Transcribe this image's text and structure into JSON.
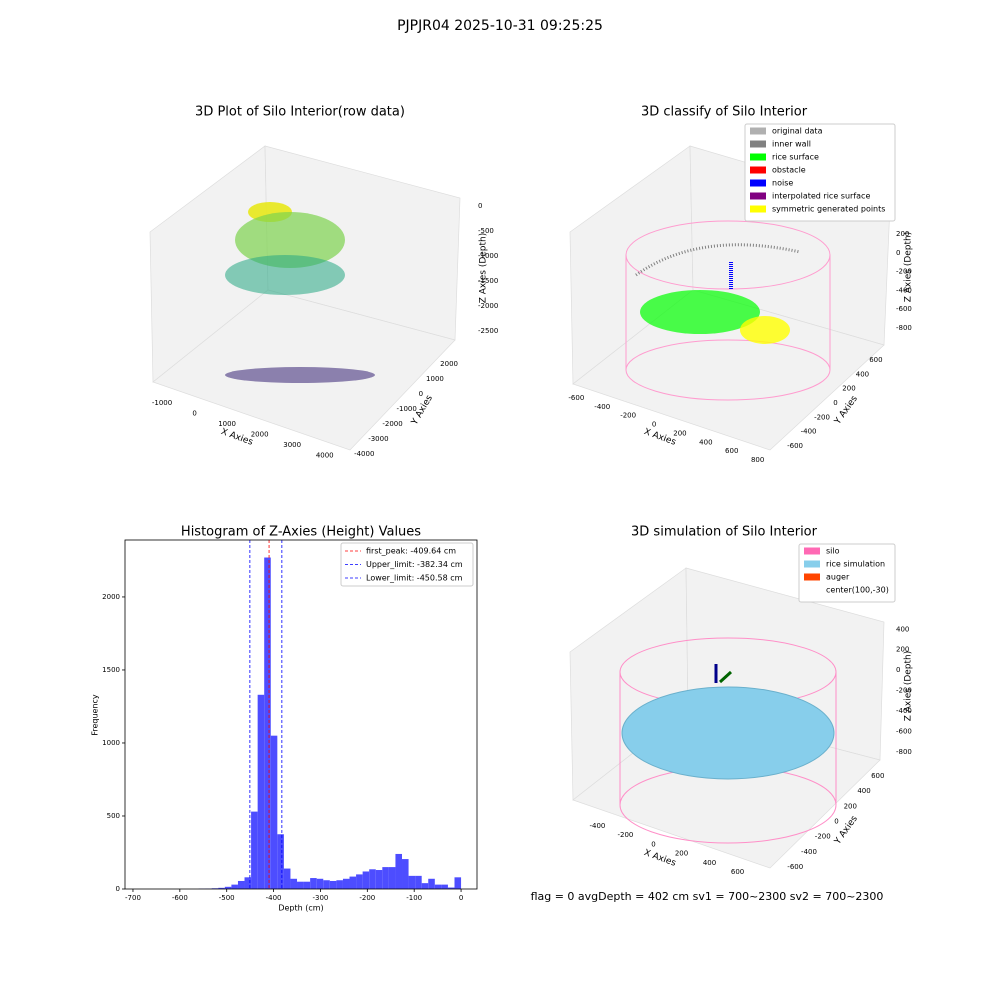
{
  "title": "PJPJR04 2025-10-31 09:25:25",
  "chart_data": [
    {
      "type": "scatter3d",
      "title": "3D Plot of Silo Interior(row data)",
      "xlabel": "X Axies",
      "ylabel": "Y Axies",
      "zlabel": "Z Axies (Depth)",
      "xlim": [
        -1400,
        4500
      ],
      "ylim": [
        -4300,
        2700
      ],
      "zlim": [
        -2800,
        300
      ],
      "xticks": [
        -1000,
        0,
        1000,
        2000,
        3000,
        4000
      ],
      "yticks": [
        -4000,
        -3000,
        -2000,
        -1000,
        0,
        1000,
        2000
      ],
      "zticks": [
        -2500,
        -2000,
        -1500,
        -1000,
        -500,
        0
      ]
    },
    {
      "type": "scatter3d",
      "title": "3D classify of Silo Interior",
      "xlabel": "X Axies",
      "ylabel": "Y Axies",
      "zlabel": "Z Axies (Depth)",
      "xlim": [
        -680,
        880
      ],
      "ylim": [
        -720,
        720
      ],
      "zlim": [
        -900,
        360
      ],
      "xticks": [
        -600,
        -400,
        -200,
        0,
        200,
        400,
        600,
        800
      ],
      "yticks": [
        -600,
        -400,
        -200,
        0,
        200,
        400,
        600
      ],
      "zticks": [
        -800,
        -600,
        -400,
        -200,
        0,
        200
      ],
      "series": [
        {
          "name": "original data",
          "color": "#b0b0b0"
        },
        {
          "name": "inner wall",
          "color": "#808080"
        },
        {
          "name": "rice surface",
          "color": "#00ff00"
        },
        {
          "name": "obstacle",
          "color": "#ff0000"
        },
        {
          "name": "noise",
          "color": "#0000ff"
        },
        {
          "name": "interpolated rice surface",
          "color": "#800080"
        },
        {
          "name": "symmetric generated points",
          "color": "#ffff00"
        }
      ]
    },
    {
      "type": "histogram",
      "title": "Histogram of Z-Axies (Height) Values",
      "xlabel": "Depth (cm)",
      "ylabel": "Frequency",
      "color": "#4d4dff",
      "xlim": [
        -717,
        34
      ],
      "ylim": [
        0,
        2390
      ],
      "xticks": [
        -700,
        -600,
        -500,
        -400,
        -300,
        -200,
        -100,
        0
      ],
      "yticks": [
        0,
        500,
        1000,
        1500,
        2000
      ],
      "bins": [
        -700,
        -686,
        -672,
        -658,
        -644,
        -630,
        -616,
        -602,
        -588,
        -574,
        -560,
        -546,
        -532,
        -518,
        -504,
        -490,
        -476,
        -462,
        -448,
        -434,
        -420,
        -406,
        -392,
        -378,
        -364,
        -350,
        -336,
        -322,
        -308,
        -294,
        -280,
        -266,
        -252,
        -238,
        -224,
        -210,
        -196,
        -182,
        -168,
        -154,
        -140,
        -126,
        -112,
        -98,
        -84,
        -70,
        -56,
        -42,
        -28,
        -14,
        0
      ],
      "values": [
        0,
        0,
        0,
        0,
        0,
        0,
        0,
        0,
        0,
        0,
        2,
        3,
        5,
        8,
        15,
        30,
        55,
        80,
        530,
        1330,
        2270,
        1050,
        375,
        140,
        70,
        50,
        50,
        75,
        70,
        60,
        55,
        60,
        70,
        85,
        100,
        120,
        135,
        130,
        150,
        150,
        240,
        205,
        90,
        90,
        40,
        70,
        30,
        30,
        10,
        80
      ],
      "lines": [
        {
          "label": "first_peak: -409.64 cm",
          "value": -409.64,
          "color": "#ff0000",
          "style": "dashed"
        },
        {
          "label": "Upper_limit: -382.34 cm",
          "value": -382.34,
          "color": "#0000ff",
          "style": "dashed"
        },
        {
          "label": "Lower_limit: -450.58 cm",
          "value": -450.58,
          "color": "#0000ff",
          "style": "dashed"
        }
      ],
      "legend": "upper right"
    },
    {
      "type": "surface3d",
      "title": "3D simulation of Silo Interior",
      "xlabel": "X Axies",
      "ylabel": "Y Axies",
      "zlabel": "Z Axies (Depth)",
      "xlim": [
        -560,
        760
      ],
      "ylim": [
        -720,
        720
      ],
      "zlim": [
        -900,
        520
      ],
      "xticks": [
        -400,
        -200,
        0,
        200,
        400,
        600
      ],
      "yticks": [
        -600,
        -400,
        -200,
        0,
        200,
        400,
        600
      ],
      "zticks": [
        -800,
        -600,
        -400,
        -200,
        0,
        200,
        400
      ],
      "series": [
        {
          "name": "silo",
          "color": "#ff69b4"
        },
        {
          "name": "rice simulation",
          "color": "#87ceeb"
        },
        {
          "name": "auger",
          "color": "#ff4500"
        },
        {
          "name": "center(100,-30)"
        }
      ],
      "annotation": "flag = 0    avgDepth = 402 cm  sv1 = 700~2300  sv2 = 700~2300"
    }
  ]
}
